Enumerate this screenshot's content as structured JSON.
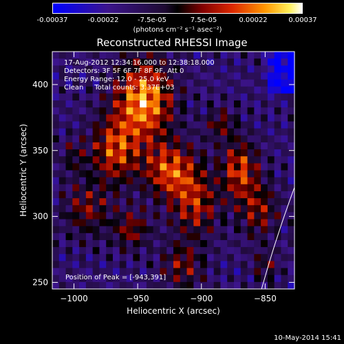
{
  "chart_data": {
    "type": "heatmap",
    "title": "Reconstructed RHESSI Image",
    "xlabel": "Heliocentric X (arcsec)",
    "ylabel": "Heliocentric Y (arcsec)",
    "xlim": [
      -1017,
      -827
    ],
    "ylim": [
      245,
      425
    ],
    "x_ticks": [
      -1000,
      -950,
      -900,
      -850
    ],
    "y_ticks": [
      250,
      300,
      350,
      400
    ],
    "colorbar": {
      "colormap": "red-temperature with blue negatives",
      "range": [
        -0.00037,
        0.00037
      ],
      "tick_labels": [
        "-0.00037",
        "-0.00022",
        "-7.5e-05",
        "7.5e-05",
        "0.00022",
        "0.00037"
      ],
      "tick_values": [
        -0.00037,
        -0.00022,
        -7.5e-05,
        7.5e-05,
        0.00022,
        0.00037
      ],
      "unit_label": "(photons cm⁻² s⁻¹ asec⁻²)"
    },
    "annotations": [
      "17-Aug-2012 12:34:16.000 to 12:38:18.000",
      "Detectors: 3F 5F 6F 7F 8F 9F, Att 0",
      "Energy Range: 12.0 - 25.0 keV",
      "Clean     Total counts: 3.37E+03"
    ],
    "peak_label": "Position of Peak = [-943,391]",
    "peak_position": [
      -943,
      391
    ],
    "limb": "solar limb arc drawn in white",
    "grid": false
  },
  "x_tick_labels": [
    "−1000",
    "−950",
    "−900",
    "−850"
  ],
  "y_tick_labels": [
    "250",
    "300",
    "350",
    "400"
  ],
  "footer": "10-May-2014 15:41",
  "colors": {
    "background": "#000000",
    "axes": "#ffffff"
  }
}
